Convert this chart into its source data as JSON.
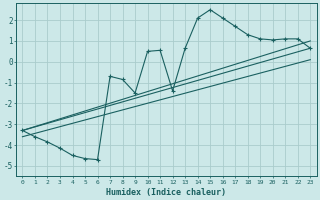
{
  "xlabel": "Humidex (Indice chaleur)",
  "background_color": "#cce8e8",
  "grid_color": "#aacccc",
  "line_color": "#1a6060",
  "xlim": [
    -0.5,
    23.5
  ],
  "ylim": [
    -5.5,
    2.8
  ],
  "xticks": [
    0,
    1,
    2,
    3,
    4,
    5,
    6,
    7,
    8,
    9,
    10,
    11,
    12,
    13,
    14,
    15,
    16,
    17,
    18,
    19,
    20,
    21,
    22,
    23
  ],
  "yticks": [
    -5,
    -4,
    -3,
    -2,
    -1,
    0,
    1,
    2
  ],
  "main_x": [
    0,
    1,
    2,
    3,
    4,
    5,
    6,
    7,
    8,
    9,
    10,
    11,
    12,
    13,
    14,
    15,
    16,
    17,
    18,
    19,
    20,
    21,
    22,
    23
  ],
  "main_y": [
    -3.3,
    -3.6,
    -3.85,
    -4.15,
    -4.5,
    -4.65,
    -4.7,
    -0.7,
    -0.85,
    -1.5,
    0.5,
    0.55,
    -1.4,
    0.65,
    2.1,
    2.5,
    2.1,
    1.7,
    1.3,
    1.1,
    1.05,
    1.1,
    1.1,
    0.65
  ],
  "line1_x": [
    0,
    23
  ],
  "line1_y": [
    -3.3,
    1.0
  ],
  "line2_x": [
    0,
    23
  ],
  "line2_y": [
    -3.3,
    0.65
  ],
  "line3_x": [
    0,
    23
  ],
  "line3_y": [
    -3.6,
    0.1
  ]
}
